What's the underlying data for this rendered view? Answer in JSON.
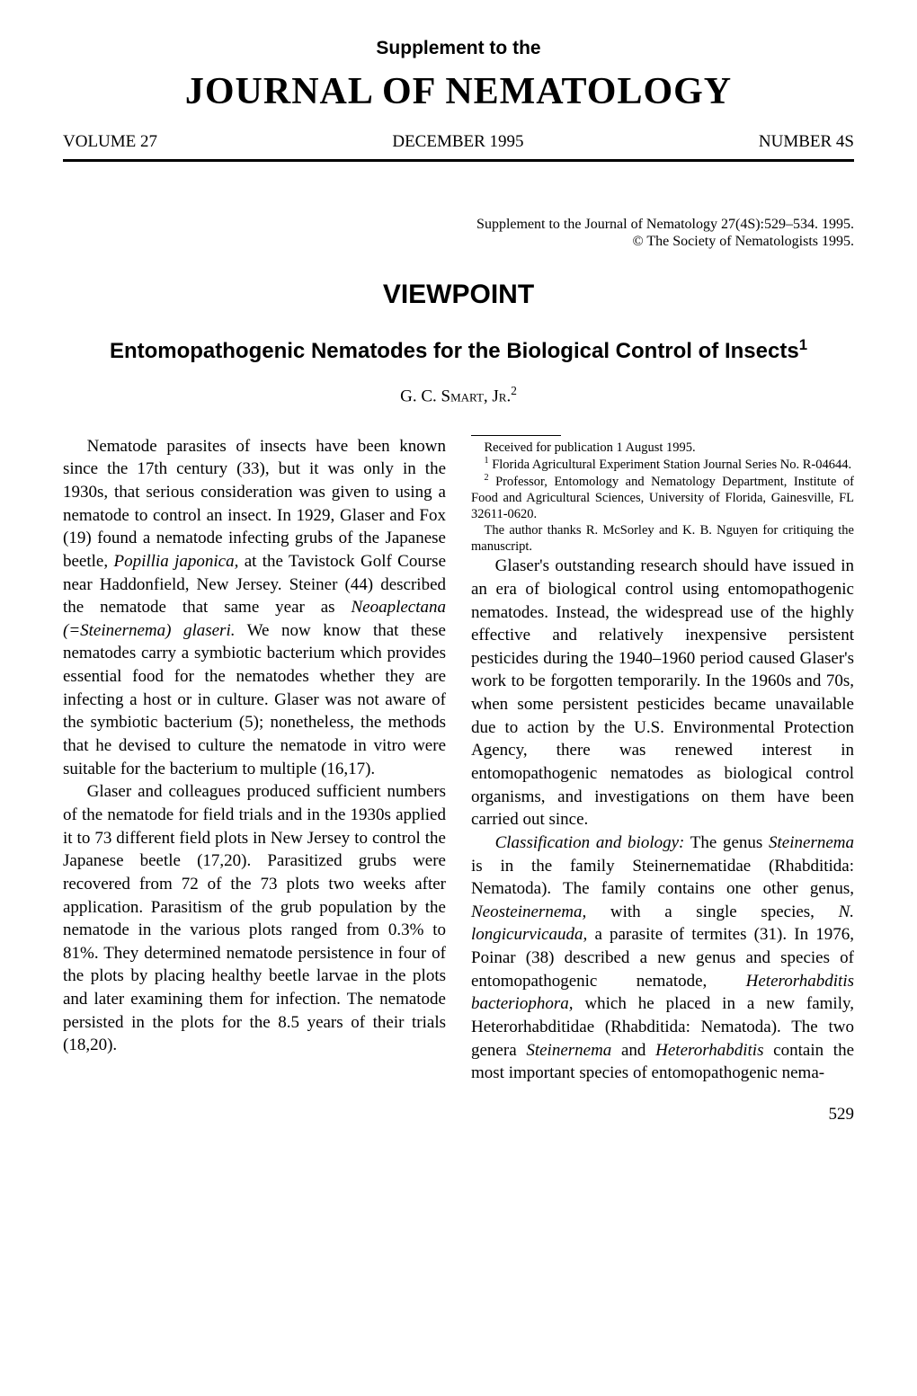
{
  "header": {
    "supplement": "Supplement to the",
    "journal": "JOURNAL OF NEMATOLOGY",
    "volume": "VOLUME 27",
    "date": "DECEMBER 1995",
    "number": "NUMBER 4S"
  },
  "citation": {
    "line1": "Supplement to the Journal of Nematology 27(4S):529–534. 1995.",
    "line2": "© The Society of Nematologists 1995."
  },
  "section": "VIEWPOINT",
  "title": "Entomopathogenic Nematodes for the Biological Control of Insects",
  "title_sup": "1",
  "author": {
    "name": "G. C. Smart, Jr.",
    "sup": "2"
  },
  "body": {
    "p1a": "Nematode parasites of insects have been known since the 17th century (33), but it was only in the 1930s, that serious consideration was given to using a nematode to control an insect. In 1929, Glaser and Fox (19) found a nematode infecting grubs of the Japanese beetle, ",
    "p1_italic1": "Popillia japonica,",
    "p1b": " at the Tavistock Golf Course near Haddonfield, New Jersey. Steiner (44) described the nematode that same year as ",
    "p1_italic2": "Neoaplectana (=Steinernema) glaseri.",
    "p1c": " We now know that these nematodes carry a symbiotic bacterium which provides essential food for the nematodes whether they are infecting a host or in culture. Glaser was not aware of the symbiotic bacterium (5); nonetheless, the methods that he devised to culture the nematode in vitro were suitable for the bacterium to multiple (16,17).",
    "p2": "Glaser and colleagues produced sufficient numbers of the nematode for field trials and in the 1930s applied it to 73 different field plots in New Jersey to control the Japanese beetle (17,20). Parasitized grubs were recovered from 72 of the 73 plots two weeks after application. Parasitism of the grub population by the nematode in the various plots ranged from 0.3% to 81%. They determined nematode persistence in four of the plots by placing healthy beetle larvae in the plots and later examining them for infection. The nematode persisted in the plots for the 8.5 years of their trials (18,20).",
    "p3": "Glaser's outstanding research should have issued in an era of biological control using entomopathogenic nematodes. Instead, the widespread use of the highly effective and relatively inexpensive persistent pesticides during the 1940–1960 period caused Glaser's work to be forgotten temporarily. In the 1960s and 70s, when some persistent pesticides became unavailable due to action by the U.S. Environmental Protection Agency, there was renewed interest in entomopathogenic nematodes as biological control organisms, and investigations on them have been carried out since.",
    "p4_italic1": "Classification and biology:",
    "p4a": " The genus ",
    "p4_italic2": "Steinernema",
    "p4b": " is in the family Steinernematidae (Rhabditida: Nematoda). The family contains one other genus, ",
    "p4_italic3": "Neosteinernema,",
    "p4c": " with a single species, ",
    "p4_italic4": "N. longicurvicauda,",
    "p4d": " a parasite of termites (31). In 1976, Poinar (38) described a new genus and species of entomopathogenic nematode, ",
    "p4_italic5": "Heterorhabditis bacteriophora,",
    "p4e": " which he placed in a new family, Heterorhabditidae (Rhabditida: Nematoda). The two genera ",
    "p4_italic6": "Steinernema",
    "p4f": " and ",
    "p4_italic7": "Heterorhabditis",
    "p4g": " contain the most important species of entomopathogenic nema-"
  },
  "footnotes": {
    "received": "Received for publication 1 August 1995.",
    "f1": "Florida Agricultural Experiment Station Journal Series No. R-04644.",
    "f2": "Professor, Entomology and Nematology Department, Institute of Food and Agricultural Sciences, University of Florida, Gainesville, FL 32611-0620.",
    "thanks": "The author thanks R. McSorley and K. B. Nguyen for critiquing the manuscript."
  },
  "page_number": "529",
  "colors": {
    "text": "#000000",
    "background": "#ffffff",
    "rule": "#000000"
  },
  "fonts": {
    "serif": "Times New Roman",
    "sans": "Arial"
  }
}
